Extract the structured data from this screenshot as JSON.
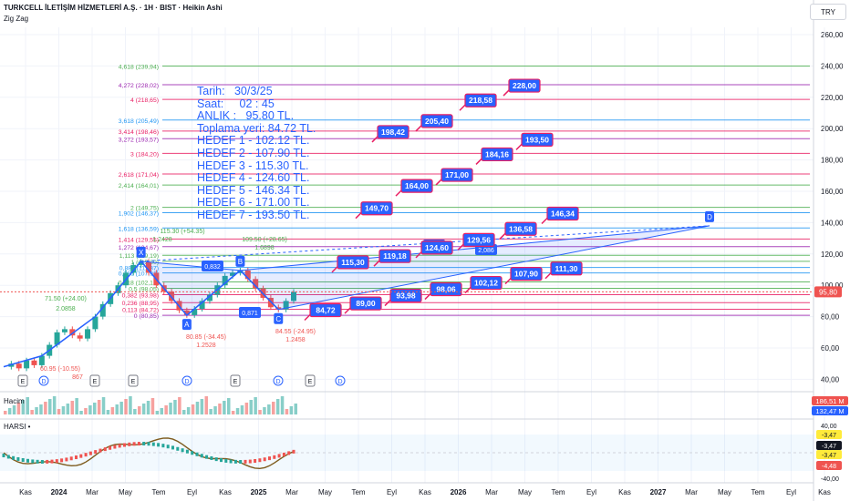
{
  "header": {
    "symbol_line": "TURKCELL İLETİŞİM HİZMETLERİ A.Ş. · 1H · BIST · Heikin Ashi",
    "indicator": "Zig Zag",
    "currency": "TRY"
  },
  "notes": [
    "Tarih:   30/3/25",
    "Saat:     02 : 45",
    "ANLIK :   95.80 TL.",
    "Toplama yeri: 84.72 TL.",
    "HEDEF 1 - 102.12 TL.",
    "HEDEF 2 - 107.90 TL.",
    "HEDEF 3 - 115.30 TL.",
    "HEDEF 4 - 124.60 TL.",
    "HEDEF 5 - 146.34 TL.",
    "HEDEF 6 - 171.00 TL.",
    "HEDEF 7 - 193.50 TL."
  ],
  "panels": {
    "volume_label": "Hacim",
    "volume_tags": [
      "186,51 M",
      "132,47 M"
    ],
    "harsi_label": "HARSI •",
    "harsi_axis": [
      "40,00",
      "-3,47",
      "-3,47",
      "-3,47",
      "-4,48",
      "-40,00"
    ]
  },
  "colors": {
    "up": "#26a69a",
    "down": "#ef5350",
    "accent": "#2962ff",
    "label_border": "#e91e63"
  },
  "chart_data": {
    "type": "line",
    "title": "TURKCELL İLETİŞİM HİZMETLERİ A.Ş. · 1H · BIST · Heikin Ashi",
    "ylim": [
      40,
      270
    ],
    "y_ticks": [
      "260,00",
      "240,00",
      "220,00",
      "200,00",
      "180,00",
      "160,00",
      "140,00",
      "120,00",
      "100,00",
      "80,00",
      "60,00",
      "40,00"
    ],
    "y_tick_values": [
      260,
      240,
      220,
      200,
      180,
      160,
      140,
      120,
      100,
      80,
      60,
      40
    ],
    "x_ticks": [
      "Kas",
      "2024",
      "Mar",
      "May",
      "Tem",
      "Eyl",
      "Kas",
      "2025",
      "Mar",
      "May",
      "Tem",
      "Eyl",
      "Kas",
      "2026",
      "Mar",
      "May",
      "Tem",
      "Eyl",
      "Kas",
      "2027",
      "Mar",
      "May",
      "Tem",
      "Eyl",
      "Kas"
    ],
    "current_price": "95,80",
    "fib_levels": [
      {
        "label": "4,618 (239,94)",
        "value": 239.94,
        "color": "#4caf50"
      },
      {
        "label": "4,272 (228,02)",
        "value": 228.02,
        "color": "#9c27b0"
      },
      {
        "label": "4 (218,65)",
        "value": 218.65,
        "color": "#e91e63"
      },
      {
        "label": "3,618 (205,49)",
        "value": 205.49,
        "color": "#2196f3"
      },
      {
        "label": "3,414 (198,46)",
        "value": 198.46,
        "color": "#e91e63"
      },
      {
        "label": "3,272 (193,57)",
        "value": 193.57,
        "color": "#9c27b0"
      },
      {
        "label": "3 (184,20)",
        "value": 184.2,
        "color": "#e91e63"
      },
      {
        "label": "2,618 (171,04)",
        "value": 171.04,
        "color": "#e91e63"
      },
      {
        "label": "2,414 (164,01)",
        "value": 164.01,
        "color": "#4caf50"
      },
      {
        "label": "2 (149,75)",
        "value": 149.75,
        "color": "#4caf50"
      },
      {
        "label": "1,902 (146,37)",
        "value": 146.37,
        "color": "#2196f3"
      },
      {
        "label": "1,618 (136,59)",
        "value": 136.59,
        "color": "#2196f3"
      },
      {
        "label": "1,414 (129,55)",
        "value": 129.55,
        "color": "#e91e63"
      },
      {
        "label": "1,272 (124,67)",
        "value": 124.67,
        "color": "#9c27b0"
      },
      {
        "label": "1,113 (119,19)",
        "value": 119.19,
        "color": "#4caf50"
      },
      {
        "label": "1 (115,30)",
        "value": 115.3,
        "color": "#4caf50"
      },
      {
        "label": "0,886 (111,37)",
        "value": 111.37,
        "color": "#2196f3"
      },
      {
        "label": "0,786 (107,91)",
        "value": 107.91,
        "color": "#2196f3"
      },
      {
        "label": "0,618 (102,12)",
        "value": 102.12,
        "color": "#4caf50"
      },
      {
        "label": "0,5 (98,05)",
        "value": 98.05,
        "color": "#4caf50"
      },
      {
        "label": "0,382 (93,98)",
        "value": 93.98,
        "color": "#e91e63"
      },
      {
        "label": "0,236 (88,95)",
        "value": 88.95,
        "color": "#e91e63"
      },
      {
        "label": "0,113 (84,72)",
        "value": 84.72,
        "color": "#e91e63"
      },
      {
        "label": "0 (80,85)",
        "value": 80.85,
        "color": "#9c27b0"
      }
    ],
    "target_labels": [
      {
        "text": "84,72",
        "value": 84.72,
        "t": 0.0
      },
      {
        "text": "89,00",
        "value": 89.0,
        "t": 0.11
      },
      {
        "text": "93,98",
        "value": 93.98,
        "t": 0.22
      },
      {
        "text": "98,06",
        "value": 98.06,
        "t": 0.33
      },
      {
        "text": "102,12",
        "value": 102.12,
        "t": 0.44
      },
      {
        "text": "107,90",
        "value": 107.9,
        "t": 0.55
      },
      {
        "text": "111,30",
        "value": 111.3,
        "t": 0.66
      },
      {
        "text": "115,30",
        "value": 115.3,
        "t": 0.04
      },
      {
        "text": "119,18",
        "value": 119.18,
        "t": 0.15
      },
      {
        "text": "124,60",
        "value": 124.6,
        "t": 0.26
      },
      {
        "text": "129,56",
        "value": 129.56,
        "t": 0.37
      },
      {
        "text": "136,58",
        "value": 136.58,
        "t": 0.48
      },
      {
        "text": "146,34",
        "value": 146.34,
        "t": 0.59
      },
      {
        "text": "149,70",
        "value": 149.7,
        "t": 0.1
      },
      {
        "text": "164,00",
        "value": 164.0,
        "t": 0.21
      },
      {
        "text": "171,00",
        "value": 171.0,
        "t": 0.32
      },
      {
        "text": "184,16",
        "value": 184.16,
        "t": 0.43
      },
      {
        "text": "193,50",
        "value": 193.5,
        "t": 0.54
      },
      {
        "text": "198,42",
        "value": 198.42,
        "t": 0.12
      },
      {
        "text": "205,40",
        "value": 205.4,
        "t": 0.23
      },
      {
        "text": "218,58",
        "value": 218.58,
        "t": 0.34
      },
      {
        "text": "228,00",
        "value": 228.0,
        "t": 0.45
      }
    ],
    "pattern_points": [
      {
        "label": "X",
        "value": 115.3
      },
      {
        "label": "A",
        "value": 80.85
      },
      {
        "label": "B",
        "value": 109.5
      },
      {
        "label": "C",
        "value": 84.55
      },
      {
        "label": "D",
        "value": 138.0
      }
    ],
    "pattern_ratios": [
      "0,832",
      "0,871",
      "1,618",
      "2,086"
    ],
    "annotations": [
      "71.50 (+24.00)",
      "2.0858",
      "109.50 (+28.65)",
      "1.6898",
      "80.85 (-34.45)",
      "1.2528",
      "84.55 (-24.95)",
      "1.2458",
      "60.95 (-10.55)",
      "867",
      "115.30 (+54.35)",
      "1.2428"
    ],
    "event_markers": [
      "E",
      "D",
      "E",
      "E",
      "D",
      "E",
      "D",
      "E",
      "D"
    ],
    "series": [
      {
        "name": "Heikin Ashi",
        "values": [
          48,
          50,
          47,
          52,
          49,
          55,
          62,
          70,
          72,
          68,
          66,
          72,
          80,
          88,
          95,
          100,
          108,
          113,
          115,
          108,
          100,
          96,
          90,
          84,
          81,
          85,
          90,
          94,
          100,
          106,
          108,
          109.5,
          104,
          98,
          92,
          86,
          84.55,
          90,
          95.8
        ]
      }
    ]
  }
}
